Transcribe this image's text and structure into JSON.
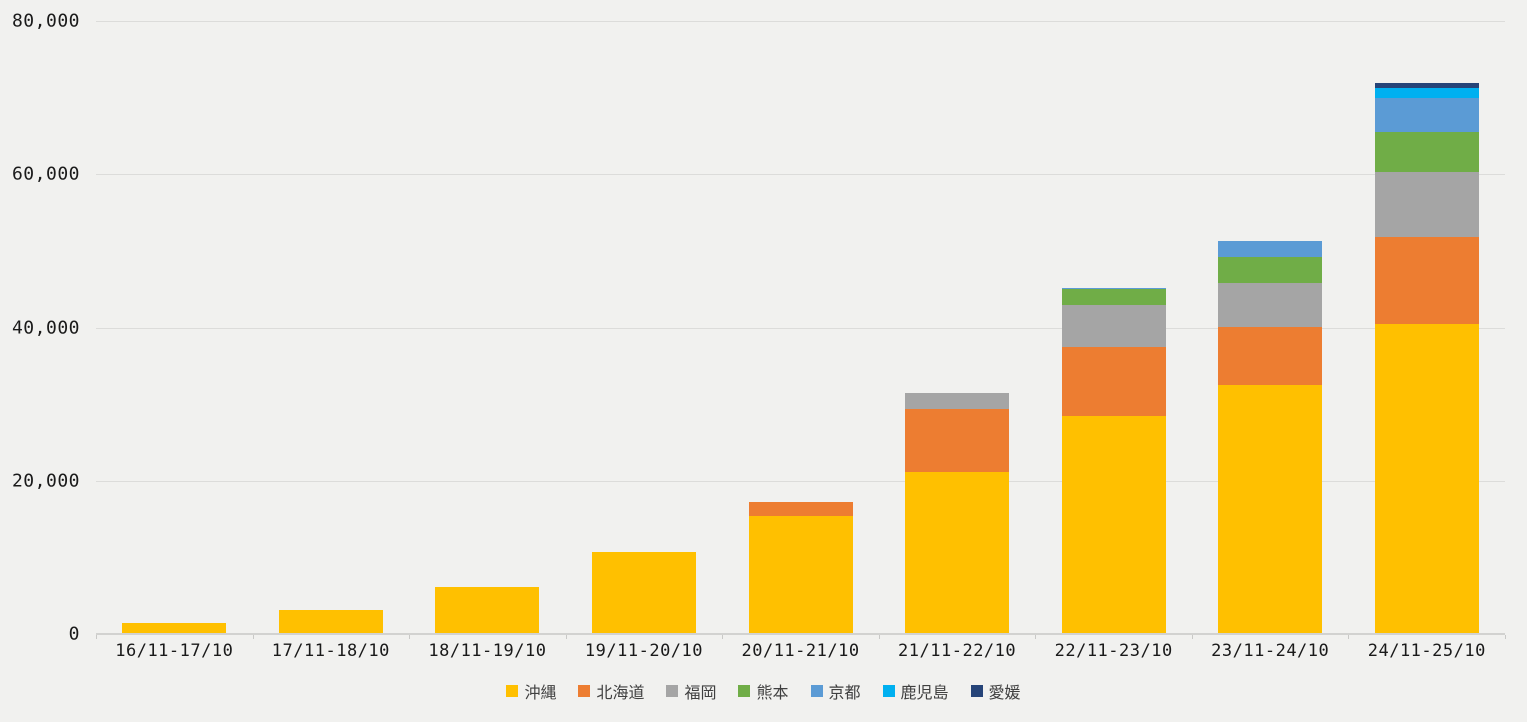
{
  "chart_data": {
    "type": "bar",
    "stacked": true,
    "title": "",
    "background_color": "#f1f1ef",
    "gridline_color": "#dcdcda",
    "legend_position": "bottom",
    "grid": true,
    "categories": [
      "16/11-17/10",
      "17/11-18/10",
      "18/11-19/10",
      "19/11-20/10",
      "20/11-21/10",
      "21/11-22/10",
      "22/11-23/10",
      "23/11-24/10",
      "24/11-25/10"
    ],
    "series": [
      {
        "name": "沖縄",
        "color": "#FFC000",
        "values": [
          1400,
          3100,
          6200,
          10700,
          15450,
          21100,
          28500,
          32500,
          40400
        ]
      },
      {
        "name": "北海道",
        "color": "#ED7D31",
        "values": [
          0,
          0,
          0,
          0,
          1800,
          8300,
          8900,
          7600,
          11400
        ]
      },
      {
        "name": "福岡",
        "color": "#A5A5A5",
        "values": [
          0,
          0,
          0,
          0,
          0,
          2000,
          5600,
          5750,
          8500
        ]
      },
      {
        "name": "熊本",
        "color": "#70AD47",
        "values": [
          0,
          0,
          0,
          0,
          0,
          0,
          2000,
          3400,
          5200
        ]
      },
      {
        "name": "京都",
        "color": "#5B9BD5",
        "values": [
          0,
          0,
          0,
          0,
          0,
          0,
          200,
          2100,
          4400
        ]
      },
      {
        "name": "鹿児島",
        "color": "#00B0F0",
        "values": [
          0,
          0,
          0,
          0,
          0,
          0,
          0,
          0,
          1300
        ]
      },
      {
        "name": "愛媛",
        "color": "#264478",
        "values": [
          0,
          0,
          0,
          0,
          0,
          0,
          0,
          0,
          700
        ]
      }
    ],
    "totals": [
      1400,
      3100,
      6200,
      10700,
      17250,
      31400,
      45200,
      51350,
      71900
    ],
    "y_axis": {
      "min": 0,
      "max": 80000,
      "tick_interval": 20000,
      "ticks": [
        {
          "value": 0,
          "label": "0"
        },
        {
          "value": 20000,
          "label": "20,000"
        },
        {
          "value": 40000,
          "label": "40,000"
        },
        {
          "value": 60000,
          "label": "60,000"
        },
        {
          "value": 80000,
          "label": "80,000"
        }
      ]
    }
  }
}
